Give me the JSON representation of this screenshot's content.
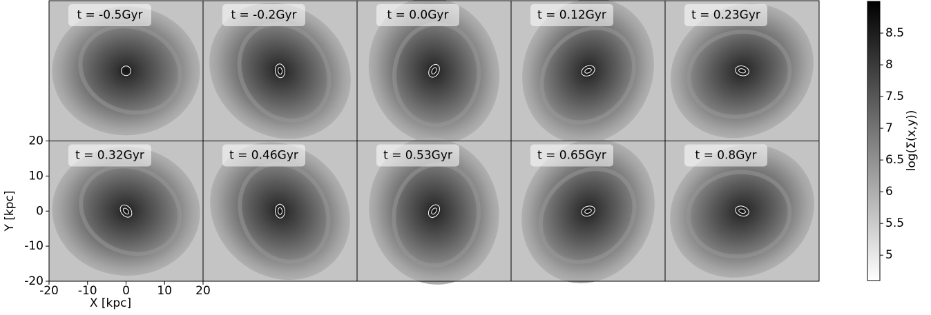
{
  "chart_data": {
    "type": "heatmap-grid",
    "panels": [
      "t = -0.5Gyr",
      "t = -0.2Gyr",
      "t = 0.0Gyr",
      "t = 0.12Gyr",
      "t = 0.23Gyr",
      "t = 0.32Gyr",
      "t = 0.46Gyr",
      "t = 0.53Gyr",
      "t = 0.65Gyr",
      "t = 0.8Gyr"
    ],
    "xlabel": "X [kpc]",
    "ylabel": "Y [kpc]",
    "xlim": [
      -20,
      20
    ],
    "xticks": [
      -20,
      -10,
      0,
      10,
      20
    ],
    "ylim": [
      -20,
      20
    ],
    "yticks": [
      -20,
      -10,
      0,
      10,
      20
    ],
    "colormap": "gray_r",
    "colorbar_label": "log(Σ(x,y))",
    "clim": [
      4.6,
      9.0
    ],
    "cticks": [
      5.0,
      5.5,
      6.0,
      6.5,
      7.0,
      7.5,
      8.0,
      8.5
    ]
  }
}
